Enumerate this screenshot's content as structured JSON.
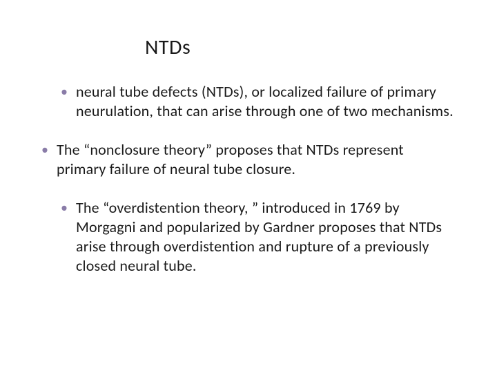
{
  "slide": {
    "title": "NTDs",
    "title_fontsize": 30,
    "title_color": "#1a1a1a",
    "background_color": "#ffffff",
    "bullet_color": "#8a7ca8",
    "text_color": "#1a1a1a",
    "text_fontsize": 22,
    "line_height": 28,
    "bullets": [
      {
        "text": "neural tube defects (NTDs), or localized failure of primary neurulation, that can arise through one of two mechanisms.",
        "indent": true
      },
      {
        "text": "The “nonclosure theory” proposes that NTDs represent primary failure of neural tube closure.",
        "indent": false
      },
      {
        "text": "The “overdistention theory, ” introduced in 1769 by Morgagni and popularized by Gardner proposes that NTDs arise through overdistention and rupture of a previously closed neural tube.",
        "indent": true
      }
    ]
  }
}
